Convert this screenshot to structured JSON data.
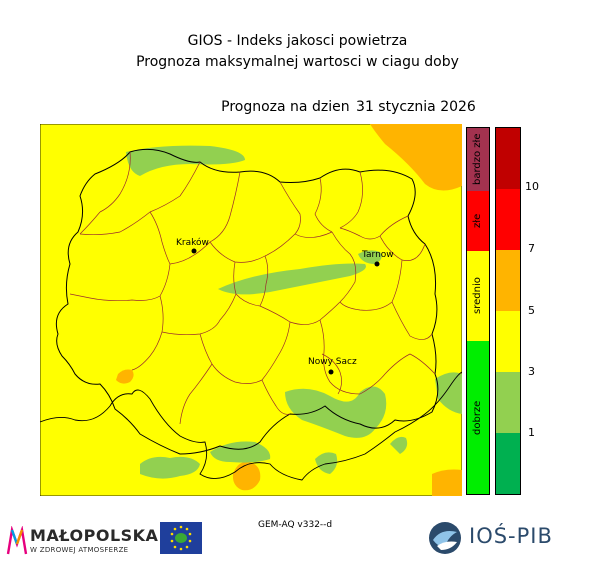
{
  "header": {
    "line1": "GIOS - Indeks jakosci powietrza",
    "line2": "Prognoza maksymalnej wartosci w ciagu doby",
    "forecast_label": "Prognoza na dzien",
    "forecast_date": "31 stycznia 2026"
  },
  "map": {
    "background_level": "srednio",
    "cities": [
      {
        "name": "Kraków"
      },
      {
        "name": "Tarnow"
      },
      {
        "name": "Nowy Sacz"
      }
    ]
  },
  "legend": {
    "categories": [
      {
        "label": "bardzo złe",
        "color": "#a3324f"
      },
      {
        "label": "złe",
        "color": "#ff0000"
      },
      {
        "label": "srednio",
        "color": "#ffff00"
      },
      {
        "label": "dobrze",
        "color": "#00ee00"
      }
    ],
    "colorbar": [
      {
        "color": "#c00000"
      },
      {
        "color": "#ff0000"
      },
      {
        "color": "#ffb400"
      },
      {
        "color": "#ffff00"
      },
      {
        "color": "#92d050"
      },
      {
        "color": "#00b050"
      }
    ],
    "ticks": [
      "10",
      "7",
      "5",
      "3",
      "1"
    ]
  },
  "footer": {
    "model": "GEM-AQ v332--d",
    "logo_left_name": "MAŁOPOLSKA",
    "logo_left_sub": "W ZDROWEJ ATMOSFERZE",
    "logo_right": "IOŚ-PIB"
  },
  "colors": {
    "yellow": "#ffff00",
    "light_green": "#92d050",
    "orange": "#ffb400",
    "border": "#9a2c2c"
  }
}
